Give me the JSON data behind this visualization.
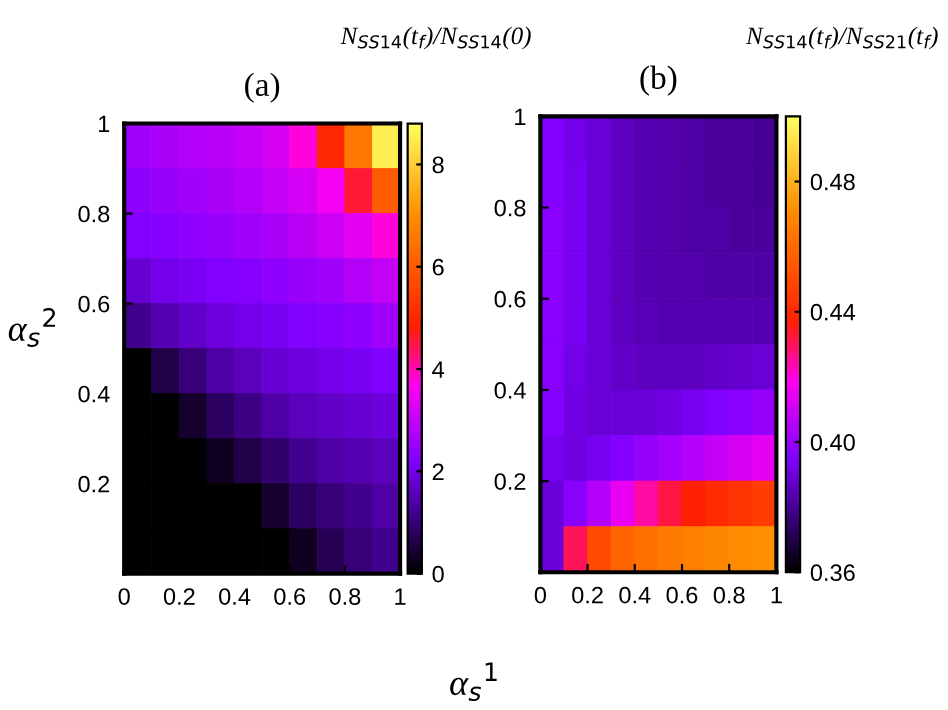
{
  "chart_data": [
    {
      "type": "heatmap",
      "title": "(a)",
      "xlabel": "α$_{s}$$^{1}$",
      "ylabel": "α$_{s}$$^{2}$",
      "clabel": "N$_{SS14}$(t$_{f}$)/N$_{SS14}$(0)",
      "x": [
        0.05,
        0.15,
        0.25,
        0.35,
        0.45,
        0.55,
        0.65,
        0.75,
        0.85,
        0.95
      ],
      "y": [
        0.95,
        0.85,
        0.75,
        0.65,
        0.55,
        0.45,
        0.35,
        0.25,
        0.15,
        0.05
      ],
      "xlim": [
        0,
        1
      ],
      "xticks": [
        0,
        0.2,
        0.4,
        0.6,
        0.8,
        1
      ],
      "ylim": [
        0,
        1
      ],
      "yticks": [
        0.2,
        0.4,
        0.6,
        0.8,
        1
      ],
      "clim": [
        0,
        8.8
      ],
      "cticks": [
        0,
        2,
        4,
        6,
        8
      ],
      "cells": [
        [
          2.6,
          2.7,
          2.8,
          2.9,
          3.0,
          3.2,
          3.8,
          5.0,
          6.5,
          8.5
        ],
        [
          2.4,
          2.5,
          2.6,
          2.7,
          2.8,
          3.0,
          3.2,
          3.6,
          4.6,
          6.0
        ],
        [
          2.2,
          2.3,
          2.4,
          2.5,
          2.6,
          2.7,
          2.9,
          3.1,
          3.4,
          3.8
        ],
        [
          1.8,
          2.0,
          2.1,
          2.2,
          2.3,
          2.4,
          2.5,
          2.6,
          2.8,
          3.0
        ],
        [
          1.2,
          1.5,
          1.7,
          1.9,
          2.0,
          2.1,
          2.2,
          2.3,
          2.4,
          2.6
        ],
        [
          0,
          0.6,
          1.0,
          1.4,
          1.6,
          1.8,
          1.9,
          2.0,
          2.1,
          2.2
        ],
        [
          0,
          0,
          0.4,
          0.8,
          1.1,
          1.4,
          1.6,
          1.7,
          1.8,
          1.9
        ],
        [
          0,
          0,
          0,
          0.3,
          0.6,
          0.9,
          1.2,
          1.4,
          1.5,
          1.6
        ],
        [
          0,
          0,
          0,
          0,
          0,
          0.4,
          0.8,
          1.0,
          1.2,
          1.4
        ],
        [
          0,
          0,
          0,
          0,
          0,
          0,
          0.3,
          0.7,
          1.0,
          1.2
        ]
      ]
    },
    {
      "type": "heatmap",
      "title": "(b)",
      "clabel": "N$_{SS14}$(t$_{f}$)/N$_{SS21}$(t$_{f}$)",
      "x": [
        0.05,
        0.15,
        0.25,
        0.35,
        0.45,
        0.55,
        0.65,
        0.75,
        0.85,
        0.95
      ],
      "y": [
        0.95,
        0.85,
        0.75,
        0.65,
        0.55,
        0.45,
        0.35,
        0.25,
        0.15,
        0.05
      ],
      "xlim": [
        0,
        1
      ],
      "xticks": [
        0,
        0.2,
        0.4,
        0.6,
        0.8,
        1
      ],
      "ylim": [
        0,
        1
      ],
      "yticks": [
        0.2,
        0.4,
        0.6,
        0.8,
        1
      ],
      "clim": [
        0.36,
        0.5
      ],
      "cticks": [
        0.36,
        {
          "value": 0.4,
          "label": "0.40"
        },
        0.44,
        0.48
      ],
      "cells": [
        [
          0.395,
          0.392,
          0.389,
          0.386,
          0.384,
          0.383,
          0.382,
          0.381,
          0.381,
          0.38
        ],
        [
          0.396,
          0.393,
          0.389,
          0.386,
          0.384,
          0.383,
          0.382,
          0.381,
          0.381,
          0.38
        ],
        [
          0.397,
          0.393,
          0.389,
          0.386,
          0.384,
          0.383,
          0.382,
          0.382,
          0.381,
          0.381
        ],
        [
          0.397,
          0.393,
          0.389,
          0.386,
          0.384,
          0.383,
          0.383,
          0.382,
          0.382,
          0.382
        ],
        [
          0.397,
          0.393,
          0.389,
          0.386,
          0.385,
          0.384,
          0.384,
          0.384,
          0.384,
          0.384
        ],
        [
          0.397,
          0.392,
          0.389,
          0.387,
          0.386,
          0.386,
          0.386,
          0.387,
          0.388,
          0.389
        ],
        [
          0.396,
          0.391,
          0.389,
          0.389,
          0.39,
          0.391,
          0.393,
          0.395,
          0.397,
          0.399
        ],
        [
          0.393,
          0.391,
          0.393,
          0.396,
          0.399,
          0.402,
          0.405,
          0.408,
          0.411,
          0.414
        ],
        [
          0.39,
          0.397,
          0.405,
          0.415,
          0.425,
          0.432,
          0.437,
          0.44,
          0.443,
          0.446
        ],
        [
          0.39,
          0.43,
          0.45,
          0.458,
          0.462,
          0.465,
          0.467,
          0.469,
          0.47,
          0.472
        ]
      ]
    }
  ]
}
